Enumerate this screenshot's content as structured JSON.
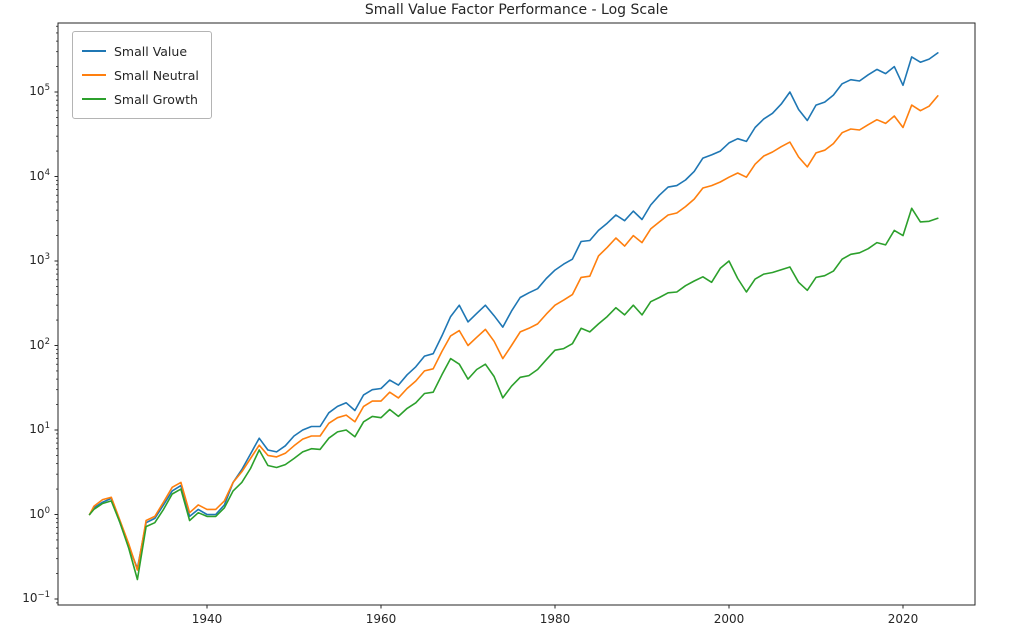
{
  "title": "Small Value Factor Performance - Log Scale",
  "legend": {
    "position": "upper left",
    "items": [
      {
        "label": "Small Value",
        "color": "#1f77b4"
      },
      {
        "label": "Small Neutral",
        "color": "#ff7f0e"
      },
      {
        "label": "Small Growth",
        "color": "#2ca02c"
      }
    ]
  },
  "axes": {
    "x_ticks": [
      1940,
      1960,
      1980,
      2000,
      2020
    ],
    "y_tick_exponents": [
      -1,
      0,
      1,
      2,
      3,
      4,
      5
    ],
    "y_scale": "log10",
    "x_range": [
      1922.9,
      2028.3
    ],
    "y_range": [
      0.085,
      655000
    ],
    "spine_color": "#262626",
    "grid": false
  },
  "chart_data": {
    "type": "line",
    "title": "Small Value Factor Performance - Log Scale",
    "xlabel": "",
    "ylabel": "",
    "y_scale": "log",
    "xlim": [
      1922.9,
      2028.3
    ],
    "ylim": [
      0.085,
      655000
    ],
    "legend_position": "upper left",
    "grid": false,
    "x": [
      1926.5,
      1927,
      1928,
      1929,
      1930,
      1931,
      1932,
      1933,
      1934,
      1935,
      1936,
      1937,
      1938,
      1939,
      1940,
      1941,
      1942,
      1943,
      1944,
      1945,
      1946,
      1947,
      1948,
      1949,
      1950,
      1951,
      1952,
      1953,
      1954,
      1955,
      1956,
      1957,
      1958,
      1959,
      1960,
      1961,
      1962,
      1963,
      1964,
      1965,
      1966,
      1967,
      1968,
      1969,
      1970,
      1971,
      1972,
      1973,
      1974,
      1975,
      1976,
      1977,
      1978,
      1979,
      1980,
      1981,
      1982,
      1983,
      1984,
      1985,
      1986,
      1987,
      1988,
      1989,
      1990,
      1991,
      1992,
      1993,
      1994,
      1995,
      1996,
      1997,
      1998,
      1999,
      2000,
      2001,
      2002,
      2003,
      2004,
      2005,
      2006,
      2007,
      2008,
      2009,
      2010,
      2011,
      2012,
      2013,
      2014,
      2015,
      2016,
      2017,
      2018,
      2019,
      2020,
      2021,
      2022,
      2023,
      2024
    ],
    "series": [
      {
        "name": "Small Value",
        "color": "#1f77b4",
        "values": [
          1.0,
          1.2,
          1.4,
          1.55,
          0.8,
          0.42,
          0.23,
          0.8,
          0.9,
          1.3,
          1.9,
          2.2,
          0.95,
          1.15,
          1.0,
          1.0,
          1.3,
          2.4,
          3.4,
          5.2,
          8.0,
          5.8,
          5.5,
          6.5,
          8.5,
          10,
          11,
          11,
          16,
          19,
          21,
          17,
          26,
          30,
          31,
          39,
          34,
          45,
          56,
          75,
          80,
          130,
          220,
          300,
          190,
          240,
          300,
          225,
          165,
          255,
          370,
          420,
          470,
          620,
          780,
          920,
          1050,
          1700,
          1750,
          2300,
          2800,
          3500,
          3000,
          3900,
          3100,
          4600,
          6000,
          7500,
          7800,
          9100,
          11500,
          16500,
          18000,
          20000,
          25000,
          28000,
          26000,
          38000,
          48000,
          56000,
          72000,
          100000,
          62000,
          46000,
          70000,
          76000,
          92000,
          125000,
          140000,
          135000,
          160000,
          185000,
          165000,
          200000,
          120000,
          260000,
          225000,
          245000,
          290000
        ]
      },
      {
        "name": "Small Neutral",
        "color": "#ff7f0e",
        "values": [
          1.0,
          1.25,
          1.5,
          1.6,
          0.85,
          0.45,
          0.22,
          0.85,
          0.95,
          1.4,
          2.1,
          2.4,
          1.05,
          1.3,
          1.15,
          1.15,
          1.45,
          2.4,
          3.2,
          4.6,
          6.6,
          5.0,
          4.8,
          5.3,
          6.5,
          7.8,
          8.5,
          8.5,
          12,
          14,
          15,
          12.5,
          19,
          22,
          22,
          28,
          24,
          31,
          38,
          50,
          53,
          85,
          130,
          150,
          100,
          125,
          155,
          112,
          70,
          100,
          145,
          160,
          180,
          235,
          300,
          345,
          400,
          640,
          660,
          1150,
          1450,
          1870,
          1500,
          2000,
          1650,
          2400,
          2900,
          3500,
          3700,
          4400,
          5400,
          7300,
          7800,
          8600,
          9800,
          11000,
          9800,
          14000,
          17500,
          19500,
          22500,
          25500,
          17000,
          13000,
          19000,
          20500,
          24500,
          33000,
          36500,
          35500,
          41000,
          47000,
          42500,
          52000,
          38000,
          70000,
          60000,
          68000,
          90000
        ]
      },
      {
        "name": "Small Growth",
        "color": "#2ca02c",
        "values": [
          1.0,
          1.15,
          1.35,
          1.45,
          0.8,
          0.4,
          0.17,
          0.72,
          0.8,
          1.15,
          1.75,
          2.0,
          0.85,
          1.05,
          0.95,
          0.95,
          1.2,
          1.9,
          2.4,
          3.5,
          5.8,
          3.8,
          3.6,
          3.9,
          4.6,
          5.5,
          6.0,
          5.9,
          8.0,
          9.5,
          10,
          8.3,
          12.5,
          14.5,
          14,
          17.5,
          14.5,
          18,
          21,
          27,
          28,
          45,
          70,
          60,
          40,
          52,
          60,
          43,
          24,
          33,
          42,
          44,
          52,
          68,
          88,
          92,
          105,
          160,
          145,
          180,
          220,
          280,
          230,
          300,
          230,
          330,
          370,
          420,
          430,
          510,
          580,
          650,
          560,
          820,
          1000,
          620,
          430,
          610,
          700,
          730,
          790,
          850,
          560,
          450,
          640,
          670,
          760,
          1050,
          1200,
          1250,
          1400,
          1650,
          1550,
          2300,
          2000,
          4200,
          2900,
          2950,
          3200
        ]
      }
    ]
  }
}
